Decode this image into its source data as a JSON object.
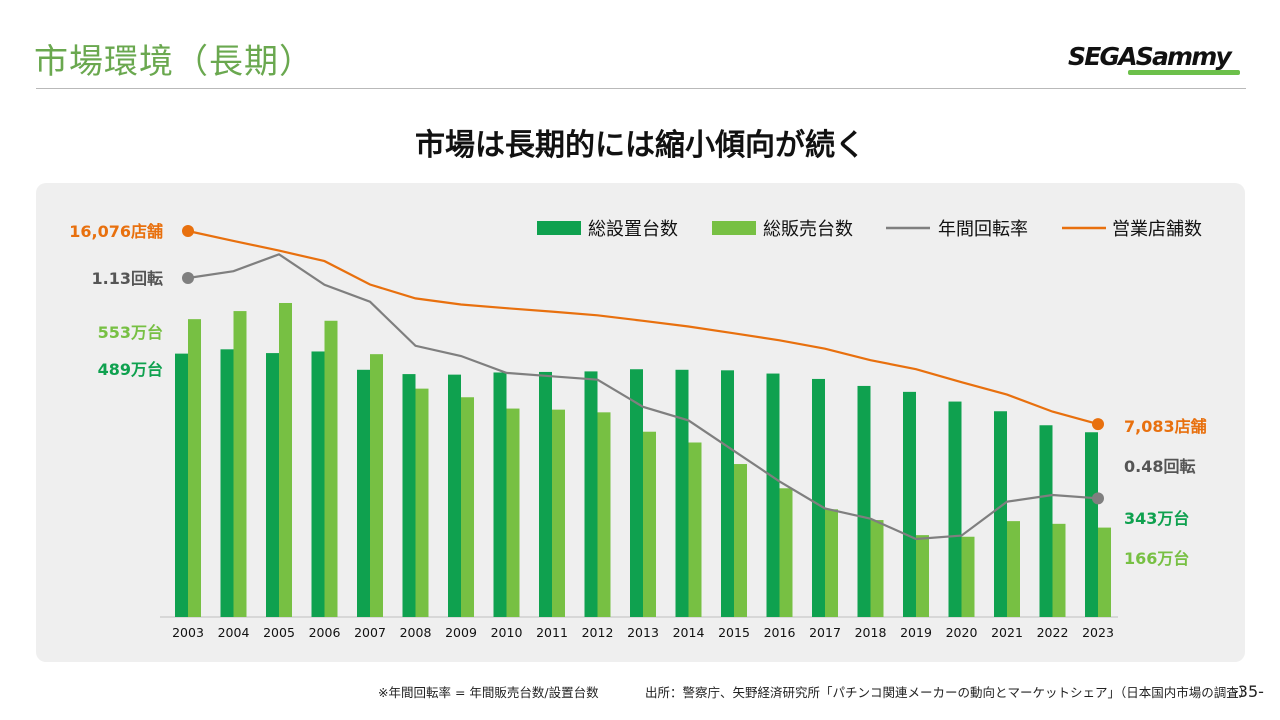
{
  "header": {
    "title": "市場環境（長期）",
    "logo_text": "SEGASammy"
  },
  "headline": "市場は長期的には縮小傾向が続く",
  "footer": {
    "note": "※年間回転率 = 年間販売台数/設置台数",
    "source": "出所：警察庁、矢野経済研究所「パチンコ関連メーカーの動向とマーケットシェア」（日本国内市場の調査）",
    "page": "-35-"
  },
  "colors": {
    "installed": "#0fa14f",
    "sales": "#77c043",
    "turnover": "#7f7f7f",
    "stores": "#e8700e",
    "title_green": "#6aa84f"
  },
  "chart_data": {
    "type": "bar",
    "categories": [
      "2003",
      "2004",
      "2005",
      "2006",
      "2007",
      "2008",
      "2009",
      "2010",
      "2011",
      "2012",
      "2013",
      "2014",
      "2015",
      "2016",
      "2017",
      "2018",
      "2019",
      "2020",
      "2021",
      "2022",
      "2023"
    ],
    "series": [
      {
        "name": "総設置台数",
        "kind": "bar",
        "values": [
          489,
          497,
          490,
          493,
          459,
          451,
          450,
          454,
          455,
          456,
          460,
          459,
          458,
          452,
          442,
          429,
          418,
          400,
          382,
          356,
          343
        ]
      },
      {
        "name": "総販売台数",
        "kind": "bar",
        "values": [
          553,
          568,
          583,
          550,
          488,
          424,
          408,
          387,
          385,
          380,
          344,
          324,
          284,
          239,
          200,
          180,
          152,
          149,
          178,
          173,
          166
        ]
      },
      {
        "name": "年間回転率",
        "kind": "line",
        "values": [
          1.13,
          1.15,
          1.2,
          1.11,
          1.06,
          0.93,
          0.9,
          0.85,
          0.84,
          0.83,
          0.75,
          0.71,
          0.62,
          0.53,
          0.45,
          0.42,
          0.36,
          0.37,
          0.47,
          0.49,
          0.48
        ]
      },
      {
        "name": "営業店舗数",
        "kind": "line",
        "values": [
          16076,
          15617,
          15165,
          14674,
          13585,
          12937,
          12652,
          12479,
          12323,
          12149,
          11893,
          11627,
          11310,
          10986,
          10596,
          10060,
          9639,
          9035,
          8458,
          7665,
          7083
        ]
      }
    ],
    "labels": {
      "stores_first": "16,076店舗",
      "stores_last": "7,083店舗",
      "turnover_first": "1.13回転",
      "turnover_last": "0.48回転",
      "sales_first": "553万台",
      "installed_first": "489万台",
      "installed_last": "343万台",
      "sales_last": "166万台"
    },
    "title": "",
    "legend_position": "top-right",
    "grid": false,
    "ylim_bars": [
      0,
      620
    ]
  }
}
